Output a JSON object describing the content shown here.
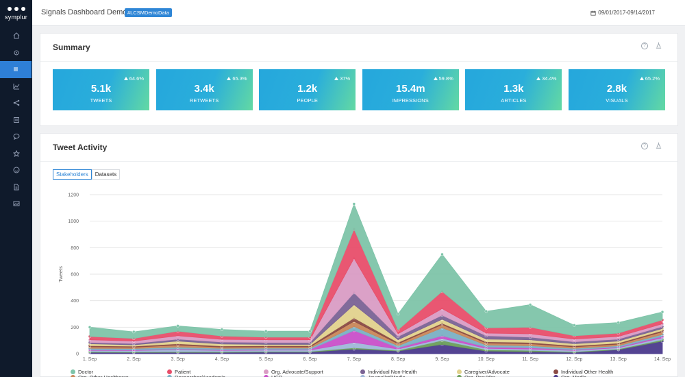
{
  "app": {
    "logo_text": "symplur"
  },
  "sidebar": {
    "items": [
      {
        "icon": "home-icon"
      },
      {
        "icon": "gear-icon"
      },
      {
        "icon": "summary-icon"
      },
      {
        "icon": "line-chart-icon"
      },
      {
        "icon": "share-icon"
      },
      {
        "icon": "document-icon"
      },
      {
        "icon": "chat-icon"
      },
      {
        "icon": "star-icon"
      },
      {
        "icon": "smiley-icon"
      },
      {
        "icon": "file-icon"
      },
      {
        "icon": "image-icon"
      }
    ],
    "active_index": 2
  },
  "header": {
    "title": "Signals Dashboard Demo",
    "tag": "#LCSMDemoData",
    "date_range": "09/01/2017-09/14/2017"
  },
  "summary": {
    "title": "Summary",
    "metrics": [
      {
        "value": "5.1k",
        "label": "TWEETS",
        "change": "64.6%"
      },
      {
        "value": "3.4k",
        "label": "RETWEETS",
        "change": "65.3%"
      },
      {
        "value": "1.2k",
        "label": "PEOPLE",
        "change": "37%"
      },
      {
        "value": "15.4m",
        "label": "IMPRESSIONS",
        "change": "59.8%"
      },
      {
        "value": "1.3k",
        "label": "ARTICLES",
        "change": "34.4%"
      },
      {
        "value": "2.8k",
        "label": "VISUALS",
        "change": "65.2%"
      }
    ]
  },
  "activity": {
    "title": "Tweet Activity",
    "tabs": [
      "Stakeholders",
      "Datasets"
    ],
    "active_tab": 0
  },
  "chart_data": {
    "type": "area",
    "title": "",
    "xlabel": "",
    "ylabel": "Tweets",
    "ylim": [
      0,
      1200
    ],
    "yticks": [
      0,
      200,
      400,
      600,
      800,
      1000,
      1200
    ],
    "categories": [
      "1. Sep",
      "2. Sep",
      "3. Sep",
      "4. Sep",
      "5. Sep",
      "6. Sep",
      "7. Sep",
      "8. Sep",
      "9. Sep",
      "10. Sep",
      "11. Sep",
      "12. Sep",
      "13. Sep",
      "14. Sep"
    ],
    "stacked": true,
    "grid": true,
    "legend_position": "bottom",
    "series": [
      {
        "name": "Doctor",
        "color": "#7ec4a9",
        "values": [
          70,
          50,
          40,
          50,
          45,
          45,
          190,
          120,
          280,
          125,
          170,
          80,
          80,
          60
        ]
      },
      {
        "name": "Patient",
        "color": "#e84e6a",
        "values": [
          25,
          20,
          35,
          25,
          20,
          20,
          220,
          30,
          130,
          40,
          50,
          25,
          25,
          30
        ]
      },
      {
        "name": "Org. Advocate/Support",
        "color": "#d99cc4",
        "values": [
          20,
          18,
          25,
          20,
          20,
          20,
          260,
          20,
          50,
          20,
          25,
          20,
          20,
          20
        ]
      },
      {
        "name": "Individual Non-Health",
        "color": "#7a6395",
        "values": [
          10,
          10,
          15,
          15,
          15,
          15,
          90,
          25,
          30,
          25,
          20,
          15,
          15,
          15
        ]
      },
      {
        "name": "Caregiver/Advocate",
        "color": "#e1d28d",
        "values": [
          15,
          10,
          20,
          15,
          10,
          10,
          100,
          20,
          30,
          20,
          20,
          15,
          15,
          15
        ]
      },
      {
        "name": "Individual Other Health",
        "color": "#8a4a44",
        "values": [
          8,
          8,
          10,
          8,
          8,
          8,
          25,
          10,
          10,
          10,
          10,
          8,
          8,
          10
        ]
      },
      {
        "name": "Org. Other Healthcare",
        "color": "#c9875a",
        "values": [
          12,
          10,
          15,
          10,
          10,
          10,
          40,
          15,
          25,
          15,
          15,
          12,
          12,
          20
        ]
      },
      {
        "name": "Researcher/Academic",
        "color": "#7ab0c4",
        "values": [
          10,
          10,
          15,
          10,
          10,
          10,
          30,
          15,
          60,
          15,
          15,
          10,
          10,
          15
        ]
      },
      {
        "name": "HCP",
        "color": "#c94fc9",
        "values": [
          5,
          5,
          5,
          5,
          5,
          5,
          90,
          10,
          20,
          10,
          10,
          5,
          5,
          10
        ]
      },
      {
        "name": "Journalist/Media",
        "color": "#9fb7d8",
        "values": [
          10,
          10,
          15,
          10,
          10,
          10,
          40,
          10,
          15,
          10,
          10,
          10,
          10,
          15
        ]
      },
      {
        "name": "Org. Provider",
        "color": "#6a9e5a",
        "values": [
          5,
          5,
          5,
          5,
          5,
          5,
          10,
          5,
          30,
          10,
          10,
          5,
          5,
          10
        ]
      },
      {
        "name": "Org. Media",
        "color": "#4b3a8c",
        "values": [
          10,
          9,
          10,
          10,
          12,
          12,
          35,
          20,
          70,
          20,
          15,
          10,
          30,
          95
        ]
      }
    ]
  }
}
